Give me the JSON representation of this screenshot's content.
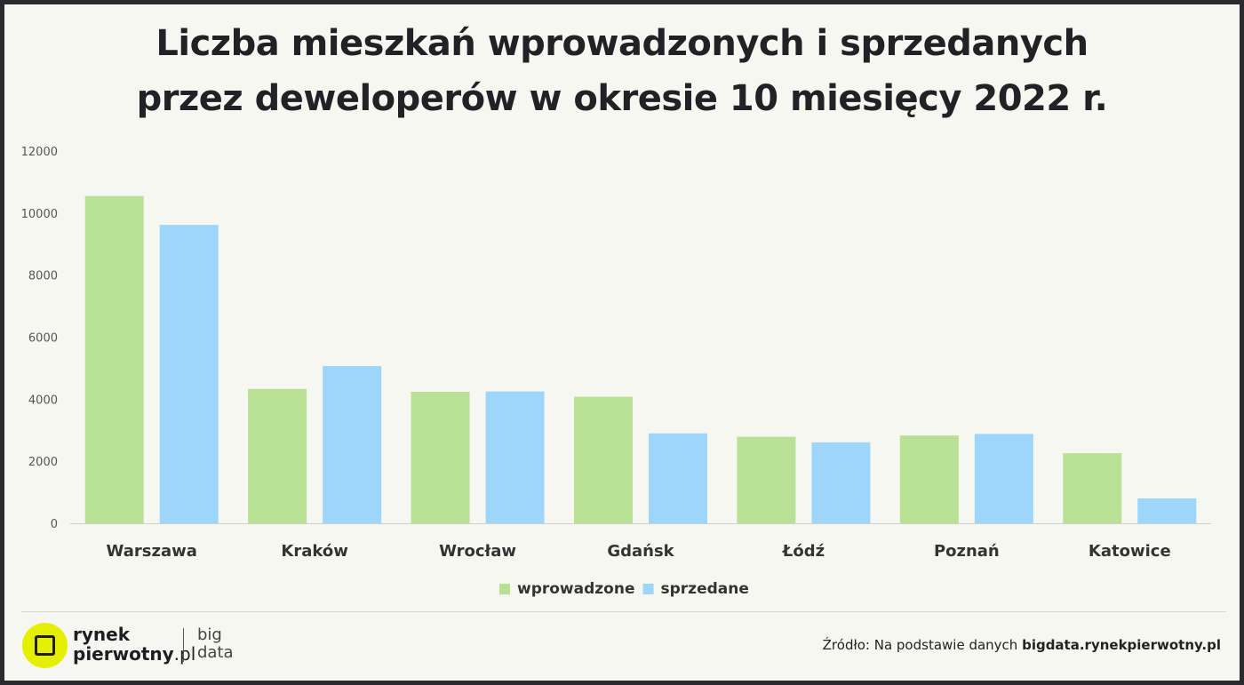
{
  "title": {
    "line1": "Liczba mieszkań wprowadzonych i sprzedanych",
    "line2": "przez deweloperów w okresie 10 miesięcy 2022 r."
  },
  "chart_data": {
    "type": "bar",
    "categories": [
      "Warszawa",
      "Kraków",
      "Wrocław",
      "Gdańsk",
      "Łódź",
      "Poznań",
      "Katowice"
    ],
    "series": [
      {
        "name": "wprowadzone",
        "color": "#b8e196",
        "values": [
          10550,
          4330,
          4240,
          4080,
          2790,
          2830,
          2260
        ]
      },
      {
        "name": "sprzedane",
        "color": "#9dd5fb",
        "values": [
          9620,
          5070,
          4250,
          2900,
          2610,
          2880,
          800
        ]
      }
    ],
    "yticks": [
      0,
      2000,
      4000,
      6000,
      8000,
      10000,
      12000
    ],
    "ylim": [
      0,
      12000
    ],
    "grid": false,
    "legend": "bottom-center"
  },
  "footer": {
    "logo_line1": "rynek",
    "logo_line2a": "pierwotny",
    "logo_line2b": ".pl",
    "brand_line1": "big",
    "brand_line2": "data",
    "source_prefix": "Źródło: Na podstawie danych ",
    "source_bold": "bigdata.rynekpierwotny.pl"
  }
}
